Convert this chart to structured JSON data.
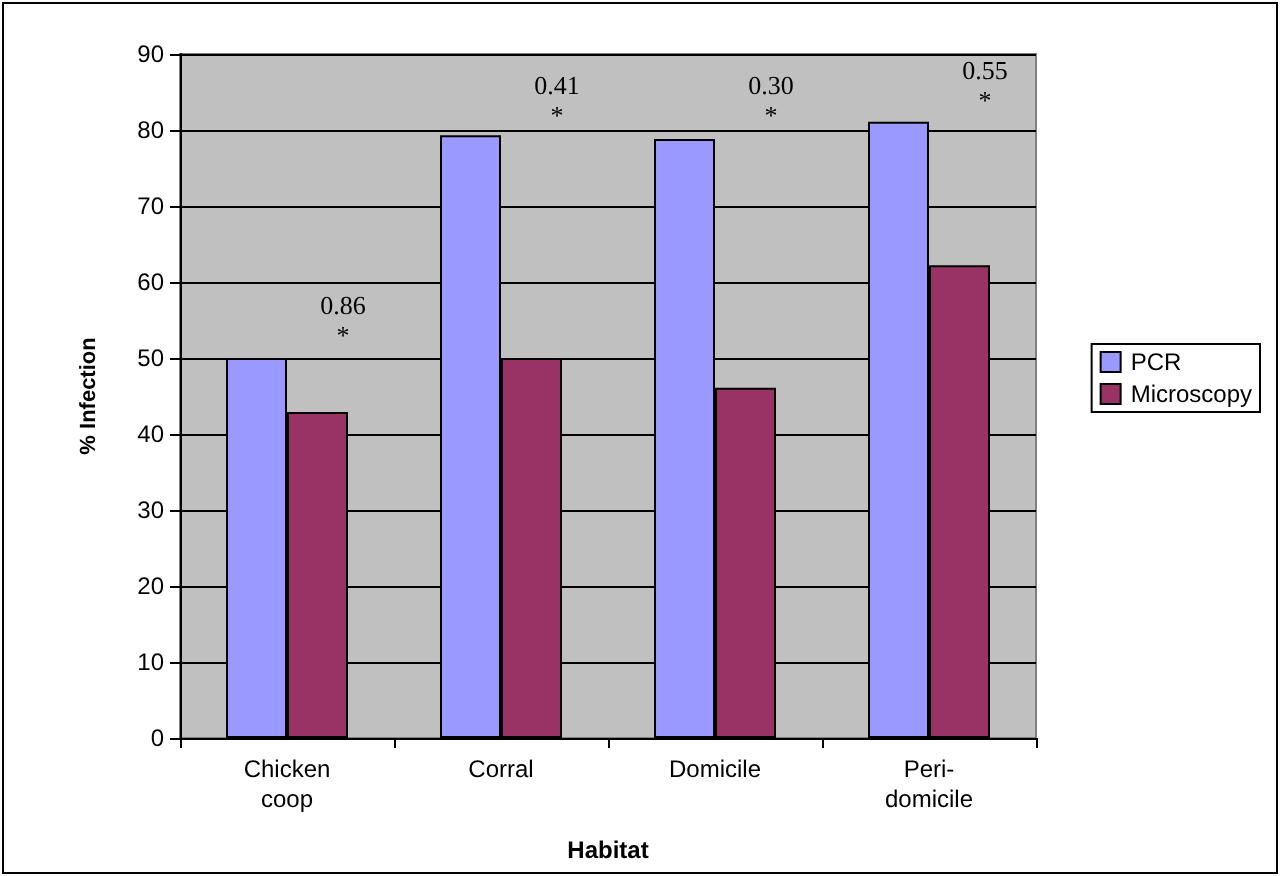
{
  "chart_data": {
    "type": "bar",
    "xlabel": "Habitat",
    "ylabel": "% Infection",
    "categories": [
      "Chicken\ncoop",
      "Corral",
      "Domicile",
      "Peri-\ndomicile"
    ],
    "series": [
      {
        "name": "PCR",
        "color": "#9999ff",
        "values": [
          50,
          79.3,
          78.8,
          81.1
        ]
      },
      {
        "name": "Microscopy",
        "color": "#993366",
        "values": [
          42.9,
          50,
          46.1,
          62.2
        ]
      }
    ],
    "annotations": [
      {
        "text": "0.86\n*",
        "x": "Chicken\ncoop",
        "y": 51
      },
      {
        "text": "0.41\n*",
        "x": "Corral",
        "y": 80
      },
      {
        "text": "0.30\n*",
        "x": "Domicile",
        "y": 80
      },
      {
        "text": "0.55\n*",
        "x": "Peri-\ndomicile",
        "y": 82
      }
    ],
    "ylim": [
      0,
      90
    ],
    "yticks": [
      0,
      10,
      20,
      30,
      40,
      50,
      60,
      70,
      80,
      90
    ],
    "grid": "y",
    "legend": "right"
  }
}
